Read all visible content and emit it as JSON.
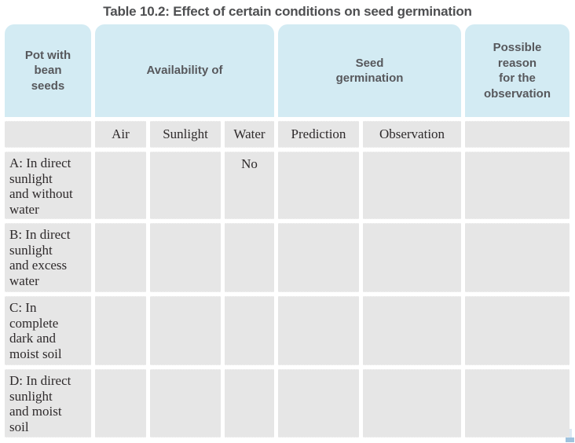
{
  "title": "Table 10.2: Effect of certain conditions on seed germination",
  "colors": {
    "header_blue": "#d3ebf3",
    "cell_gray": "#e6e6e6",
    "title_text": "#4e4f51",
    "header_text": "#57585c",
    "body_text": "#2e2a2b",
    "corner_blue": "#9fc3de"
  },
  "table": {
    "top_headers": {
      "pot": "Pot with\nbean\nseeds",
      "availability": "Availability of",
      "germination": "Seed\ngermination",
      "reason": "Possible\nreason\nfor the\nobservation"
    },
    "sub_headers": {
      "pot": "",
      "air": "Air",
      "sunlight": "Sunlight",
      "water": "Water",
      "prediction": "Prediction",
      "observation": "Observation",
      "reason": ""
    },
    "rows": [
      {
        "pot": "A: In direct\nsunlight\nand without\nwater",
        "air": "",
        "sunlight": "",
        "water": "No",
        "prediction": "",
        "observation": "",
        "reason": ""
      },
      {
        "pot": "B: In direct\nsunlight\nand excess\nwater",
        "air": "",
        "sunlight": "",
        "water": "",
        "prediction": "",
        "observation": "",
        "reason": ""
      },
      {
        "pot": "C: In\ncomplete\ndark and\nmoist soil",
        "air": "",
        "sunlight": "",
        "water": "",
        "prediction": "",
        "observation": "",
        "reason": ""
      },
      {
        "pot": "D: In direct\nsunlight\nand moist\nsoil",
        "air": "",
        "sunlight": "",
        "water": "",
        "prediction": "",
        "observation": "",
        "reason": ""
      }
    ]
  }
}
